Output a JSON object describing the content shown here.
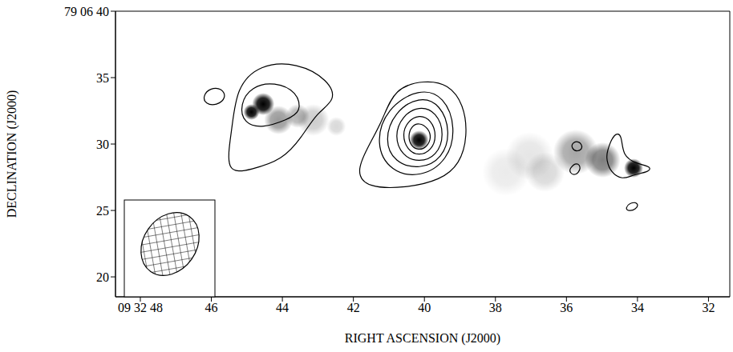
{
  "chart_data": {
    "type": "contour",
    "x_label": "RIGHT ASCENSION (J2000)",
    "y_label": "DECLINATION (J2000)",
    "xlim": [
      48.7,
      31.4
    ],
    "ylim": [
      18.5,
      40
    ],
    "xticks": [
      {
        "value": 48,
        "label": "09 32 48"
      },
      46,
      44,
      42,
      40,
      38,
      36,
      34,
      32
    ],
    "yticks": [
      20,
      25,
      30,
      35,
      {
        "value": 40,
        "label": "79 06 40"
      }
    ],
    "color": "#000000",
    "contours": [
      [
        [
          41.61,
          26.69
        ],
        [
          41.93,
          27.89
        ],
        [
          41.61,
          29.7
        ],
        [
          41.17,
          31.81
        ],
        [
          40.85,
          34.22
        ],
        [
          39.98,
          34.82
        ],
        [
          39.33,
          34.52
        ],
        [
          38.89,
          33.01
        ],
        [
          38.78,
          30.6
        ],
        [
          39.0,
          28.49
        ],
        [
          39.54,
          27.29
        ],
        [
          40.52,
          26.69
        ]
      ],
      [
        [
          40.15,
          34.22
        ],
        [
          39.43,
          33.61
        ],
        [
          39.11,
          31.2
        ],
        [
          39.33,
          28.8
        ],
        [
          40.09,
          27.47
        ],
        [
          40.96,
          27.89
        ],
        [
          41.39,
          30.0
        ],
        [
          41.07,
          32.71
        ]
      ],
      [
        [
          40.15,
          33.61
        ],
        [
          39.54,
          33.01
        ],
        [
          39.26,
          30.9
        ],
        [
          39.48,
          28.92
        ],
        [
          40.13,
          28.07
        ],
        [
          40.85,
          28.61
        ],
        [
          41.13,
          30.3
        ],
        [
          40.85,
          32.41
        ]
      ],
      [
        [
          40.15,
          32.89
        ],
        [
          39.65,
          32.41
        ],
        [
          39.43,
          30.72
        ],
        [
          39.65,
          29.1
        ],
        [
          40.15,
          28.61
        ],
        [
          40.63,
          29.1
        ],
        [
          40.85,
          30.6
        ],
        [
          40.63,
          32.11
        ]
      ],
      [
        [
          40.15,
          32.23
        ],
        [
          39.8,
          31.81
        ],
        [
          39.65,
          30.6
        ],
        [
          39.8,
          29.52
        ],
        [
          40.15,
          29.1
        ],
        [
          40.48,
          29.52
        ],
        [
          40.63,
          30.72
        ],
        [
          40.48,
          31.69
        ]
      ],
      [
        [
          40.15,
          31.63
        ],
        [
          39.89,
          31.2
        ],
        [
          39.8,
          30.48
        ],
        [
          39.93,
          29.76
        ],
        [
          40.17,
          29.52
        ],
        [
          40.39,
          29.88
        ],
        [
          40.46,
          30.6
        ],
        [
          40.37,
          31.33
        ]
      ],
      [
        [
          45.63,
          27.71
        ],
        [
          45.41,
          31.2
        ],
        [
          45.3,
          34.22
        ],
        [
          44.65,
          36.02
        ],
        [
          43.57,
          36.14
        ],
        [
          42.7,
          34.82
        ],
        [
          42.48,
          33.31
        ],
        [
          43.02,
          32.41
        ],
        [
          43.46,
          30.48
        ],
        [
          44.0,
          28.8
        ],
        [
          44.87,
          28.07
        ]
      ],
      [
        [
          45.2,
          33.01
        ],
        [
          44.87,
          34.34
        ],
        [
          44.22,
          34.7
        ],
        [
          43.57,
          33.92
        ],
        [
          43.46,
          32.41
        ],
        [
          43.89,
          31.81
        ],
        [
          44.54,
          31.2
        ],
        [
          45.09,
          31.51
        ]
      ],
      [
        [
          46.24,
          33.61
        ],
        [
          46.04,
          34.22
        ],
        [
          45.7,
          34.22
        ],
        [
          45.57,
          33.49
        ],
        [
          45.85,
          32.89
        ],
        [
          46.17,
          33.01
        ]
      ],
      [
        [
          35.85,
          30.12
        ],
        [
          35.63,
          30.24
        ],
        [
          35.52,
          29.7
        ],
        [
          35.7,
          29.4
        ],
        [
          35.85,
          29.64
        ]
      ],
      [
        [
          35.91,
          28.19
        ],
        [
          35.7,
          28.67
        ],
        [
          35.57,
          28.19
        ],
        [
          35.74,
          27.59
        ],
        [
          35.91,
          27.83
        ]
      ],
      [
        [
          34.87,
          29.4
        ],
        [
          34.65,
          30.9
        ],
        [
          34.43,
          30.72
        ],
        [
          34.43,
          29.1
        ],
        [
          34.0,
          28.49
        ],
        [
          33.61,
          28.31
        ],
        [
          33.67,
          27.89
        ],
        [
          34.11,
          27.71
        ],
        [
          34.43,
          27.29
        ],
        [
          34.76,
          27.89
        ],
        [
          34.87,
          28.8
        ]
      ],
      [
        [
          34.35,
          25.18
        ],
        [
          34.17,
          25.66
        ],
        [
          33.96,
          25.54
        ],
        [
          34.04,
          25.06
        ],
        [
          34.26,
          24.94
        ]
      ]
    ],
    "greyscale": [
      {
        "x": 44.54,
        "y": 33.01,
        "size": 0.84,
        "intensity": 1.0
      },
      {
        "x": 44.87,
        "y": 32.41,
        "size": 0.6,
        "intensity": 1.0
      },
      {
        "x": 44.11,
        "y": 31.81,
        "size": 1.08,
        "intensity": 0.4
      },
      {
        "x": 43.57,
        "y": 32.11,
        "size": 0.9,
        "intensity": 0.3
      },
      {
        "x": 43.13,
        "y": 31.81,
        "size": 1.2,
        "intensity": 0.2
      },
      {
        "x": 42.48,
        "y": 31.33,
        "size": 0.72,
        "intensity": 0.15
      },
      {
        "x": 40.15,
        "y": 30.3,
        "size": 0.72,
        "intensity": 1.0
      },
      {
        "x": 37.7,
        "y": 27.89,
        "size": 1.8,
        "intensity": 0.08
      },
      {
        "x": 37.04,
        "y": 29.1,
        "size": 1.8,
        "intensity": 0.1
      },
      {
        "x": 36.61,
        "y": 27.89,
        "size": 1.5,
        "intensity": 0.15
      },
      {
        "x": 35.74,
        "y": 29.4,
        "size": 1.69,
        "intensity": 0.35
      },
      {
        "x": 34.98,
        "y": 28.8,
        "size": 1.33,
        "intensity": 0.5
      },
      {
        "x": 34.11,
        "y": 28.19,
        "size": 0.72,
        "intensity": 1.0
      }
    ]
  }
}
